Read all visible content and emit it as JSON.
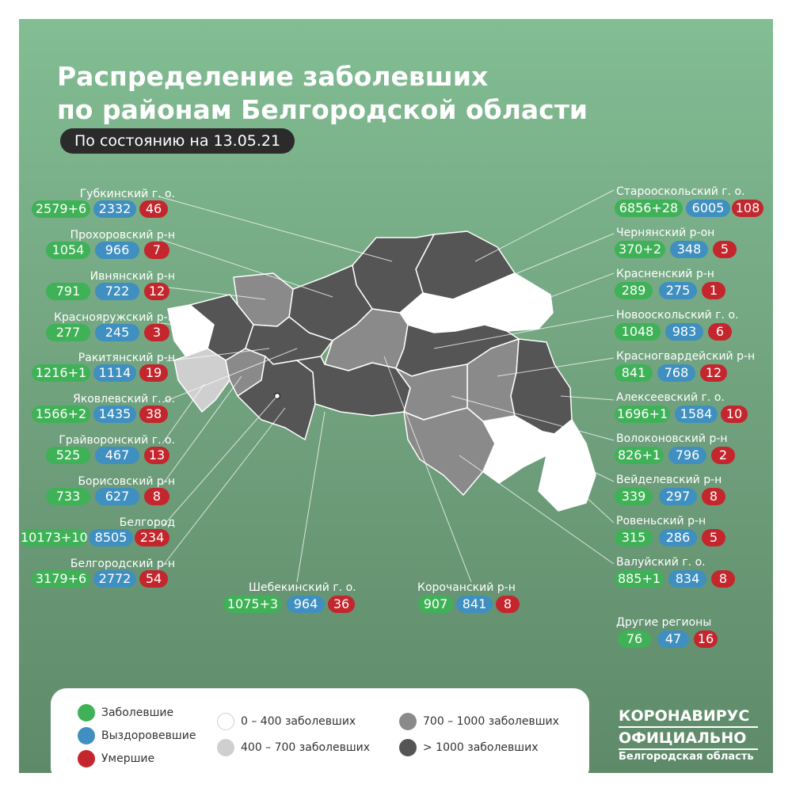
{
  "header": {
    "title_line1": "Распределение заболевших",
    "title_line2": "по районам Белгородской области",
    "date_label": "По состоянию на 13.05.21"
  },
  "districts": [
    {
      "id": "gubkinsky",
      "name": "Губкинский г. о.",
      "cases": "2579+6",
      "recovered": "2332",
      "deaths": "46"
    },
    {
      "id": "prokhorovsky",
      "name": "Прохоровский р-н",
      "cases": "1054",
      "recovered": "966",
      "deaths": "7"
    },
    {
      "id": "ivnyansky",
      "name": "Ивнянский р-н",
      "cases": "791",
      "recovered": "722",
      "deaths": "12"
    },
    {
      "id": "krasnoyaruzhsky",
      "name": "Краснояружский р-н",
      "cases": "277",
      "recovered": "245",
      "deaths": "3"
    },
    {
      "id": "rakityansky",
      "name": "Ракитянский р-н",
      "cases": "1216+1",
      "recovered": "1114",
      "deaths": "19"
    },
    {
      "id": "yakovlevsky",
      "name": "Яковлевский г. о.",
      "cases": "1566+2",
      "recovered": "1435",
      "deaths": "38"
    },
    {
      "id": "grayvoronsky",
      "name": "Грайворонский г. о.",
      "cases": "525",
      "recovered": "467",
      "deaths": "13"
    },
    {
      "id": "borisovsky",
      "name": "Борисовский р-н",
      "cases": "733",
      "recovered": "627",
      "deaths": "8"
    },
    {
      "id": "belgorod",
      "name": "Белгород",
      "cases": "10173+10",
      "recovered": "8505",
      "deaths": "234"
    },
    {
      "id": "belgorodsky",
      "name": "Белгородский р-н",
      "cases": "3179+6",
      "recovered": "2772",
      "deaths": "54"
    },
    {
      "id": "shebekinsky",
      "name": "Шебекинский г. о.",
      "cases": "1075+3",
      "recovered": "964",
      "deaths": "36"
    },
    {
      "id": "korochansky",
      "name": "Корочанский р-н",
      "cases": "907",
      "recovered": "841",
      "deaths": "8"
    },
    {
      "id": "starooskolsky",
      "name": "Старооскольский г. о.",
      "cases": "6856+28",
      "recovered": "6005",
      "deaths": "108"
    },
    {
      "id": "chernyansky",
      "name": "Чернянский р-он",
      "cases": "370+2",
      "recovered": "348",
      "deaths": "5"
    },
    {
      "id": "krasnensky",
      "name": "Красненский р-н",
      "cases": "289",
      "recovered": "275",
      "deaths": "1"
    },
    {
      "id": "novooskolsky",
      "name": "Новооскольский г. о.",
      "cases": "1048",
      "recovered": "983",
      "deaths": "6"
    },
    {
      "id": "krasnogvardeysky",
      "name": "Красногвардейский р-н",
      "cases": "841",
      "recovered": "768",
      "deaths": "12"
    },
    {
      "id": "alekseevsky",
      "name": "Алексеевский г. о.",
      "cases": "1696+1",
      "recovered": "1584",
      "deaths": "10"
    },
    {
      "id": "volokonovsky",
      "name": "Волоконовский р-н",
      "cases": "826+1",
      "recovered": "796",
      "deaths": "2"
    },
    {
      "id": "veydelevsky",
      "name": "Вейделевский р-н",
      "cases": "339",
      "recovered": "297",
      "deaths": "8"
    },
    {
      "id": "rovensky",
      "name": "Ровеньский р-н",
      "cases": "315",
      "recovered": "286",
      "deaths": "5"
    },
    {
      "id": "valuysky",
      "name": "Валуйский г. о.",
      "cases": "885+1",
      "recovered": "834",
      "deaths": "8"
    },
    {
      "id": "other",
      "name": "Другие регионы",
      "cases": "76",
      "recovered": "47",
      "deaths": "16"
    }
  ],
  "legend": {
    "cases": "Заболевшие",
    "recovered": "Выздоровевшие",
    "deaths": "Умершие",
    "range1": "0 – 400 заболевших",
    "range2": "400 – 700 заболевших",
    "range3": "700 – 1000 заболевших",
    "range4": "> 1000 заболевших"
  },
  "brand": {
    "line1": "КОРОНАВИРУС",
    "line2": "ОФИЦИАЛЬНО",
    "line3": "Белгородская область"
  },
  "colors": {
    "cases": "#3fb157",
    "recovered": "#3f8fc0",
    "deaths": "#c4262d",
    "range1": "#ffffff",
    "range2": "#cfcfcf",
    "range3": "#8a8a8a",
    "range4": "#555555",
    "background": "#7cb68c"
  }
}
